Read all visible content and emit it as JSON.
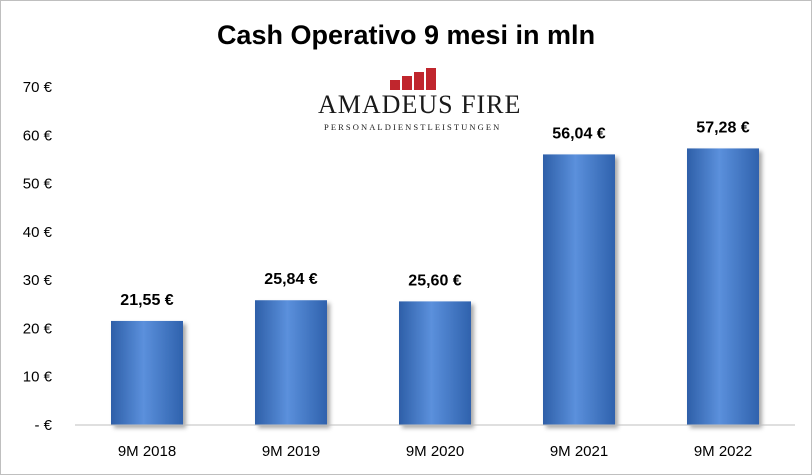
{
  "chart_data": {
    "type": "bar",
    "title": "Cash Operativo 9 mesi in mln",
    "categories": [
      "9M 2018",
      "9M 2019",
      "9M 2020",
      "9M 2021",
      "9M 2022"
    ],
    "values": [
      21.55,
      25.84,
      25.6,
      56.04,
      57.28
    ],
    "data_labels": [
      "21,55 €",
      "25,84 €",
      "25,60 €",
      "56,04 €",
      "57,28 €"
    ],
    "ylim": [
      0,
      70
    ],
    "yticks": [
      0,
      10,
      20,
      30,
      40,
      50,
      60,
      70
    ],
    "ytick_labels": [
      "- €",
      "10 €",
      "20 €",
      "30 €",
      "40 €",
      "50 €",
      "60 €",
      "70 €"
    ],
    "xlabel": "",
    "ylabel": "",
    "grid": false,
    "legend": "none",
    "bar_color": "#4a7fcf"
  },
  "logo": {
    "name": "Amadeus FiRe",
    "name_display": "AMADEUS FIRE",
    "subtitle": "PERSONALDIENSTLEISTUNGEN",
    "mark_color": "#c0262d"
  }
}
